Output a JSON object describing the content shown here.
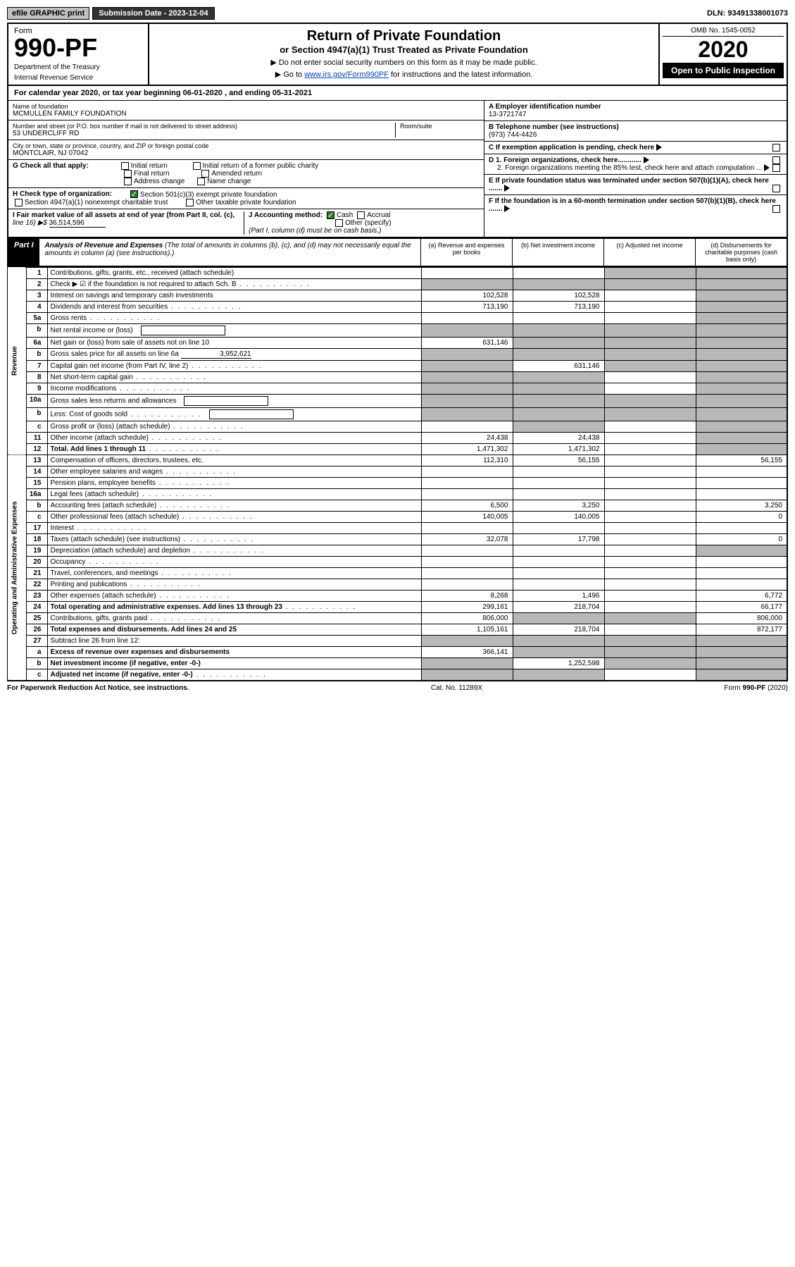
{
  "topbar": {
    "efile": "efile GRAPHIC print",
    "sub_label": "Submission Date - 2023-12-04",
    "dln": "DLN: 93491338001073"
  },
  "header": {
    "form_label": "Form",
    "form_num": "990-PF",
    "dept": "Department of the Treasury",
    "irs": "Internal Revenue Service",
    "title": "Return of Private Foundation",
    "subtitle": "or Section 4947(a)(1) Trust Treated as Private Foundation",
    "instr1": "▶ Do not enter social security numbers on this form as it may be made public.",
    "instr2_pre": "▶ Go to ",
    "instr2_link": "www.irs.gov/Form990PF",
    "instr2_post": " for instructions and the latest information.",
    "omb": "OMB No. 1545-0052",
    "year": "2020",
    "open": "Open to Public Inspection"
  },
  "cal_year": {
    "pre": "For calendar year 2020, or tax year beginning ",
    "begin": "06-01-2020",
    "mid": " , and ending ",
    "end": "05-31-2021"
  },
  "info": {
    "name_lbl": "Name of foundation",
    "name": "MCMULLEN FAMILY FOUNDATION",
    "addr_lbl": "Number and street (or P.O. box number if mail is not delivered to street address)",
    "addr": "53 UNDERCLIFF RD",
    "room_lbl": "Room/suite",
    "city_lbl": "City or town, state or province, country, and ZIP or foreign postal code",
    "city": "MONTCLAIR, NJ  07042",
    "ein_lbl": "A Employer identification number",
    "ein": "13-3721747",
    "phone_lbl": "B Telephone number (see instructions)",
    "phone": "(973) 744-4426",
    "c_lbl": "C If exemption application is pending, check here",
    "g_lbl": "G Check all that apply:",
    "g_opts": [
      "Initial return",
      "Initial return of a former public charity",
      "Final return",
      "Amended return",
      "Address change",
      "Name change"
    ],
    "d1": "D 1. Foreign organizations, check here............",
    "d2": "2. Foreign organizations meeting the 85% test, check here and attach computation ...",
    "h_lbl": "H Check type of organization:",
    "h1": "Section 501(c)(3) exempt private foundation",
    "h2": "Section 4947(a)(1) nonexempt charitable trust",
    "h3": "Other taxable private foundation",
    "e_lbl": "E  If private foundation status was terminated under section 507(b)(1)(A), check here .......",
    "i_lbl": "I Fair market value of all assets at end of year (from Part II, col. (c),",
    "i_line": "line 16) ▶$",
    "i_val": "36,514,596",
    "j_lbl": "J Accounting method:",
    "j_cash": "Cash",
    "j_accrual": "Accrual",
    "j_other": "Other (specify)",
    "j_note": "(Part I, column (d) must be on cash basis.)",
    "f_lbl": "F  If the foundation is in a 60-month termination under section 507(b)(1)(B), check here ......."
  },
  "part1": {
    "label": "Part I",
    "title": "Analysis of Revenue and Expenses",
    "note": "(The total of amounts in columns (b), (c), and (d) may not necessarily equal the amounts in column (a) (see instructions).)",
    "col_a": "(a) Revenue and expenses per books",
    "col_b": "(b) Net investment income",
    "col_c": "(c) Adjusted net income",
    "col_d": "(d) Disbursements for charitable purposes (cash basis only)"
  },
  "sides": {
    "revenue": "Revenue",
    "expenses": "Operating and Administrative Expenses"
  },
  "rows": [
    {
      "n": "1",
      "lbl": "Contributions, gifts, grants, etc., received (attach schedule)",
      "a": "",
      "b": "",
      "c": "g",
      "d": "g"
    },
    {
      "n": "2",
      "lbl": "Check ▶ ☑ if the foundation is not required to attach Sch. B",
      "dots": true,
      "a": "g",
      "b": "g",
      "c": "g",
      "d": "g"
    },
    {
      "n": "3",
      "lbl": "Interest on savings and temporary cash investments",
      "a": "102,528",
      "b": "102,528",
      "c": "",
      "d": "g"
    },
    {
      "n": "4",
      "lbl": "Dividends and interest from securities",
      "dots": true,
      "a": "713,190",
      "b": "713,190",
      "c": "",
      "d": "g"
    },
    {
      "n": "5a",
      "lbl": "Gross rents",
      "dots": true,
      "a": "",
      "b": "",
      "c": "",
      "d": "g"
    },
    {
      "n": "b",
      "lbl": "Net rental income or (loss)",
      "box": true,
      "a": "g",
      "b": "g",
      "c": "g",
      "d": "g"
    },
    {
      "n": "6a",
      "lbl": "Net gain or (loss) from sale of assets not on line 10",
      "a": "631,146",
      "b": "g",
      "c": "g",
      "d": "g"
    },
    {
      "n": "b",
      "lbl": "Gross sales price for all assets on line 6a",
      "ul": "3,952,621",
      "a": "g",
      "b": "g",
      "c": "g",
      "d": "g"
    },
    {
      "n": "7",
      "lbl": "Capital gain net income (from Part IV, line 2)",
      "dots": true,
      "a": "g",
      "b": "631,146",
      "c": "g",
      "d": "g"
    },
    {
      "n": "8",
      "lbl": "Net short-term capital gain",
      "dots": true,
      "a": "g",
      "b": "g",
      "c": "",
      "d": "g"
    },
    {
      "n": "9",
      "lbl": "Income modifications",
      "dots": true,
      "a": "g",
      "b": "g",
      "c": "",
      "d": "g"
    },
    {
      "n": "10a",
      "lbl": "Gross sales less returns and allowances",
      "box": true,
      "a": "g",
      "b": "g",
      "c": "g",
      "d": "g"
    },
    {
      "n": "b",
      "lbl": "Less: Cost of goods sold",
      "dots": true,
      "box": true,
      "a": "g",
      "b": "g",
      "c": "g",
      "d": "g"
    },
    {
      "n": "c",
      "lbl": "Gross profit or (loss) (attach schedule)",
      "dots": true,
      "a": "",
      "b": "g",
      "c": "",
      "d": "g"
    },
    {
      "n": "11",
      "lbl": "Other income (attach schedule)",
      "dots": true,
      "a": "24,438",
      "b": "24,438",
      "c": "",
      "d": "g"
    },
    {
      "n": "12",
      "lbl": "Total. Add lines 1 through 11",
      "dots": true,
      "bold": true,
      "a": "1,471,302",
      "b": "1,471,302",
      "c": "",
      "d": "g"
    },
    {
      "n": "13",
      "lbl": "Compensation of officers, directors, trustees, etc.",
      "a": "112,310",
      "b": "56,155",
      "c": "",
      "d": "56,155"
    },
    {
      "n": "14",
      "lbl": "Other employee salaries and wages",
      "dots": true,
      "a": "",
      "b": "",
      "c": "",
      "d": ""
    },
    {
      "n": "15",
      "lbl": "Pension plans, employee benefits",
      "dots": true,
      "a": "",
      "b": "",
      "c": "",
      "d": ""
    },
    {
      "n": "16a",
      "lbl": "Legal fees (attach schedule)",
      "dots": true,
      "a": "",
      "b": "",
      "c": "",
      "d": ""
    },
    {
      "n": "b",
      "lbl": "Accounting fees (attach schedule)",
      "dots": true,
      "a": "6,500",
      "b": "3,250",
      "c": "",
      "d": "3,250"
    },
    {
      "n": "c",
      "lbl": "Other professional fees (attach schedule)",
      "dots": true,
      "a": "140,005",
      "b": "140,005",
      "c": "",
      "d": "0"
    },
    {
      "n": "17",
      "lbl": "Interest",
      "dots": true,
      "a": "",
      "b": "",
      "c": "",
      "d": ""
    },
    {
      "n": "18",
      "lbl": "Taxes (attach schedule) (see instructions)",
      "dots": true,
      "a": "32,078",
      "b": "17,798",
      "c": "",
      "d": "0"
    },
    {
      "n": "19",
      "lbl": "Depreciation (attach schedule) and depletion",
      "dots": true,
      "a": "",
      "b": "",
      "c": "",
      "d": "g"
    },
    {
      "n": "20",
      "lbl": "Occupancy",
      "dots": true,
      "a": "",
      "b": "",
      "c": "",
      "d": ""
    },
    {
      "n": "21",
      "lbl": "Travel, conferences, and meetings",
      "dots": true,
      "a": "",
      "b": "",
      "c": "",
      "d": ""
    },
    {
      "n": "22",
      "lbl": "Printing and publications",
      "dots": true,
      "a": "",
      "b": "",
      "c": "",
      "d": ""
    },
    {
      "n": "23",
      "lbl": "Other expenses (attach schedule)",
      "dots": true,
      "a": "8,268",
      "b": "1,496",
      "c": "",
      "d": "6,772"
    },
    {
      "n": "24",
      "lbl": "Total operating and administrative expenses. Add lines 13 through 23",
      "dots": true,
      "bold": true,
      "a": "299,161",
      "b": "218,704",
      "c": "",
      "d": "66,177"
    },
    {
      "n": "25",
      "lbl": "Contributions, gifts, grants paid",
      "dots": true,
      "a": "806,000",
      "b": "g",
      "c": "g",
      "d": "806,000"
    },
    {
      "n": "26",
      "lbl": "Total expenses and disbursements. Add lines 24 and 25",
      "bold": true,
      "a": "1,105,161",
      "b": "218,704",
      "c": "",
      "d": "872,177"
    },
    {
      "n": "27",
      "lbl": "Subtract line 26 from line 12:",
      "a": "g",
      "b": "g",
      "c": "g",
      "d": "g"
    },
    {
      "n": "a",
      "lbl": "Excess of revenue over expenses and disbursements",
      "bold": true,
      "a": "366,141",
      "b": "g",
      "c": "g",
      "d": "g"
    },
    {
      "n": "b",
      "lbl": "Net investment income (if negative, enter -0-)",
      "bold": true,
      "a": "g",
      "b": "1,252,598",
      "c": "g",
      "d": "g"
    },
    {
      "n": "c",
      "lbl": "Adjusted net income (if negative, enter -0-)",
      "dots": true,
      "bold": true,
      "a": "g",
      "b": "g",
      "c": "",
      "d": "g"
    }
  ],
  "footer": {
    "left": "For Paperwork Reduction Act Notice, see instructions.",
    "mid": "Cat. No. 11289X",
    "right": "Form 990-PF (2020)"
  },
  "colors": {
    "grey": "#b8b8b8",
    "link": "#0645ad",
    "check": "#2a7a2a"
  }
}
